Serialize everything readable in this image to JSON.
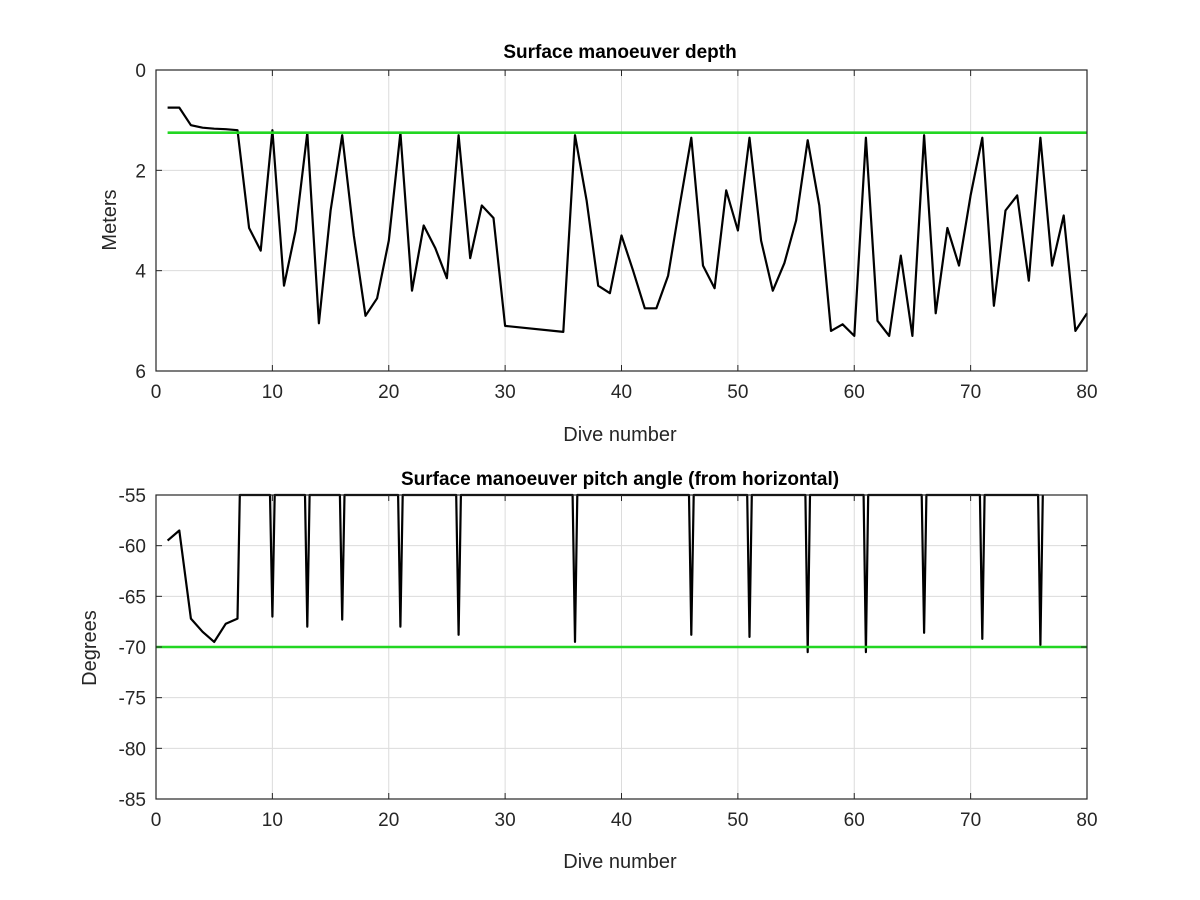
{
  "chart_data": [
    {
      "type": "line",
      "title": "Surface manoeuver depth",
      "xlabel": "Dive number",
      "ylabel": "Meters",
      "xlim": [
        0,
        80
      ],
      "ylim": [
        0,
        6
      ],
      "y_reversed": true,
      "xticks": [
        0,
        10,
        20,
        30,
        40,
        50,
        60,
        70,
        80
      ],
      "yticks": [
        0,
        2,
        4,
        6
      ],
      "grid": true,
      "series": [
        {
          "color": "#000000",
          "points": [
            [
              1,
              0.75
            ],
            [
              2,
              0.75
            ],
            [
              3,
              1.1
            ],
            [
              4,
              1.15
            ],
            [
              5,
              1.17
            ],
            [
              6,
              1.18
            ],
            [
              7,
              1.2
            ],
            [
              8,
              3.15
            ],
            [
              9,
              3.6
            ],
            [
              10,
              1.2
            ],
            [
              11,
              4.3
            ],
            [
              12,
              3.2
            ],
            [
              13,
              1.25
            ],
            [
              14,
              5.05
            ],
            [
              15,
              2.8
            ],
            [
              16,
              1.3
            ],
            [
              17,
              3.3
            ],
            [
              18,
              4.9
            ],
            [
              19,
              4.55
            ],
            [
              20,
              3.4
            ],
            [
              21,
              1.25
            ],
            [
              22,
              4.4
            ],
            [
              23,
              3.1
            ],
            [
              24,
              3.55
            ],
            [
              25,
              4.15
            ],
            [
              26,
              1.3
            ],
            [
              27,
              3.75
            ],
            [
              28,
              2.7
            ],
            [
              29,
              2.95
            ],
            [
              30,
              5.1
            ],
            [
              35,
              5.22
            ],
            [
              36,
              1.3
            ],
            [
              37,
              2.6
            ],
            [
              38,
              4.3
            ],
            [
              39,
              4.45
            ],
            [
              40,
              3.3
            ],
            [
              41,
              4.0
            ],
            [
              42,
              4.75
            ],
            [
              43,
              4.75
            ],
            [
              44,
              4.1
            ],
            [
              45,
              2.7
            ],
            [
              46,
              1.35
            ],
            [
              47,
              3.9
            ],
            [
              48,
              4.35
            ],
            [
              49,
              2.4
            ],
            [
              50,
              3.2
            ],
            [
              51,
              1.35
            ],
            [
              52,
              3.4
            ],
            [
              53,
              4.4
            ],
            [
              54,
              3.85
            ],
            [
              55,
              3.0
            ],
            [
              56,
              1.4
            ],
            [
              57,
              2.7
            ],
            [
              58,
              5.2
            ],
            [
              59,
              5.07
            ],
            [
              60,
              5.3
            ],
            [
              61,
              1.35
            ],
            [
              62,
              5.0
            ],
            [
              63,
              5.3
            ],
            [
              64,
              3.7
            ],
            [
              65,
              5.3
            ],
            [
              66,
              1.3
            ],
            [
              67,
              4.85
            ],
            [
              68,
              3.15
            ],
            [
              69,
              3.9
            ],
            [
              70,
              2.5
            ],
            [
              71,
              1.35
            ],
            [
              72,
              4.7
            ],
            [
              73,
              2.8
            ],
            [
              74,
              2.5
            ],
            [
              75,
              4.2
            ],
            [
              76,
              1.35
            ],
            [
              77,
              3.9
            ],
            [
              78,
              2.9
            ],
            [
              79,
              5.2
            ],
            [
              80,
              4.85
            ]
          ]
        },
        {
          "color": "#22d622",
          "points": [
            [
              1,
              1.25
            ],
            [
              80,
              1.25
            ]
          ]
        }
      ]
    },
    {
      "type": "line",
      "title": "Surface manoeuver pitch angle (from horizontal)",
      "xlabel": "Dive number",
      "ylabel": "Degrees",
      "xlim": [
        0,
        80
      ],
      "ylim": [
        -85,
        -55
      ],
      "xticks": [
        0,
        10,
        20,
        30,
        40,
        50,
        60,
        70,
        80
      ],
      "yticks": [
        -55,
        -60,
        -65,
        -70,
        -75,
        -80,
        -85
      ],
      "grid": true,
      "series": [
        {
          "color": "#000000",
          "points": [
            [
              1,
              -59.5
            ],
            [
              2,
              -58.5
            ],
            [
              3,
              -67.2
            ],
            [
              4,
              -68.5
            ],
            [
              5,
              -69.5
            ],
            [
              6,
              -67.7
            ],
            [
              7,
              -67.2
            ],
            [
              7.2,
              -55
            ],
            [
              9.8,
              -55
            ],
            [
              10,
              -67
            ],
            [
              10.2,
              -55
            ],
            [
              12.8,
              -55
            ],
            [
              13,
              -68
            ],
            [
              13.2,
              -55
            ],
            [
              15.8,
              -55
            ],
            [
              16,
              -67.3
            ],
            [
              16.2,
              -55
            ],
            [
              20.8,
              -55
            ],
            [
              21,
              -68
            ],
            [
              21.2,
              -55
            ],
            [
              25.8,
              -55
            ],
            [
              26,
              -68.8
            ],
            [
              26.2,
              -55
            ],
            [
              35.8,
              -55
            ],
            [
              36,
              -69.5
            ],
            [
              36.2,
              -55
            ],
            [
              45.8,
              -55
            ],
            [
              46,
              -68.8
            ],
            [
              46.2,
              -55
            ],
            [
              50.8,
              -55
            ],
            [
              51,
              -69
            ],
            [
              51.2,
              -55
            ],
            [
              55.8,
              -55
            ],
            [
              56,
              -70.5
            ],
            [
              56.2,
              -55
            ],
            [
              60.8,
              -55
            ],
            [
              61,
              -70.5
            ],
            [
              61.2,
              -55
            ],
            [
              65.8,
              -55
            ],
            [
              66,
              -68.6
            ],
            [
              66.2,
              -55
            ],
            [
              70.8,
              -55
            ],
            [
              71,
              -69.2
            ],
            [
              71.2,
              -55
            ],
            [
              75.8,
              -55
            ],
            [
              76,
              -69.8
            ],
            [
              76.2,
              -55
            ]
          ]
        },
        {
          "color": "#22d622",
          "points": [
            [
              0,
              -70
            ],
            [
              80,
              -70
            ]
          ]
        }
      ]
    }
  ]
}
